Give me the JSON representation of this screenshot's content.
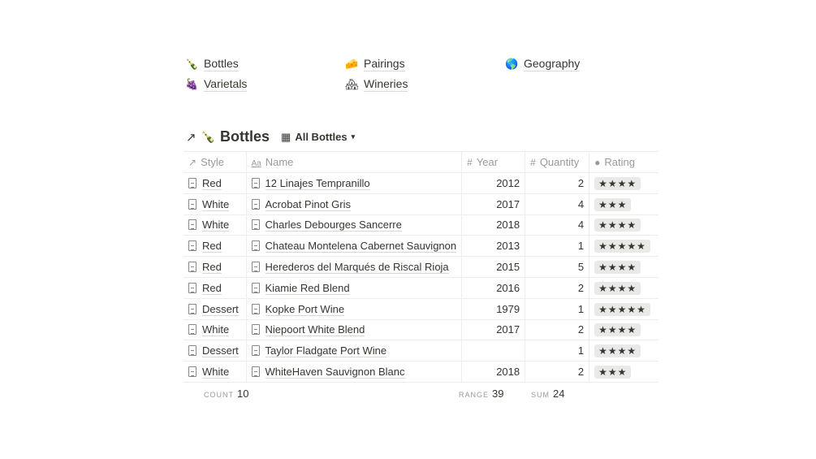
{
  "links": [
    {
      "emoji": "🍾",
      "label": "Bottles"
    },
    {
      "emoji": "🧀",
      "label": "Pairings"
    },
    {
      "emoji": "🌎",
      "label": "Geography"
    },
    {
      "emoji": "🍇",
      "label": "Varietals"
    },
    {
      "emoji": "🏘",
      "label": "Wineries"
    }
  ],
  "database": {
    "emoji": "🍾",
    "title": "Bottles",
    "view": "All Bottles"
  },
  "columns": [
    "Style",
    "Name",
    "Year",
    "Quantity",
    "Rating"
  ],
  "rows": [
    {
      "style": "Red",
      "name": "12 Linajes Tempranillo",
      "year": "2012",
      "quantity": "2",
      "rating": 4
    },
    {
      "style": "White",
      "name": "Acrobat Pinot Gris",
      "year": "2017",
      "quantity": "4",
      "rating": 3
    },
    {
      "style": "White",
      "name": "Charles Debourges Sancerre",
      "year": "2018",
      "quantity": "4",
      "rating": 4
    },
    {
      "style": "Red",
      "name": "Chateau Montelena Cabernet Sauvignon",
      "year": "2013",
      "quantity": "1",
      "rating": 5
    },
    {
      "style": "Red",
      "name": "Herederos del Marqués de Riscal Rioja",
      "year": "2015",
      "quantity": "5",
      "rating": 4
    },
    {
      "style": "Red",
      "name": "Kiamie Red Blend",
      "year": "2016",
      "quantity": "2",
      "rating": 4
    },
    {
      "style": "Dessert",
      "name": "Kopke Port Wine",
      "year": "1979",
      "quantity": "1",
      "rating": 5
    },
    {
      "style": "White",
      "name": "Niepoort White Blend",
      "year": "2017",
      "quantity": "2",
      "rating": 4
    },
    {
      "style": "Dessert",
      "name": "Taylor Fladgate Port Wine",
      "year": "",
      "quantity": "1",
      "rating": 4
    },
    {
      "style": "White",
      "name": "WhiteHaven Sauvignon Blanc",
      "year": "2018",
      "quantity": "2",
      "rating": 3
    }
  ],
  "footer": {
    "count_label": "COUNT",
    "count": "10",
    "range_label": "RANGE",
    "range": "39",
    "sum_label": "SUM",
    "sum": "24"
  }
}
